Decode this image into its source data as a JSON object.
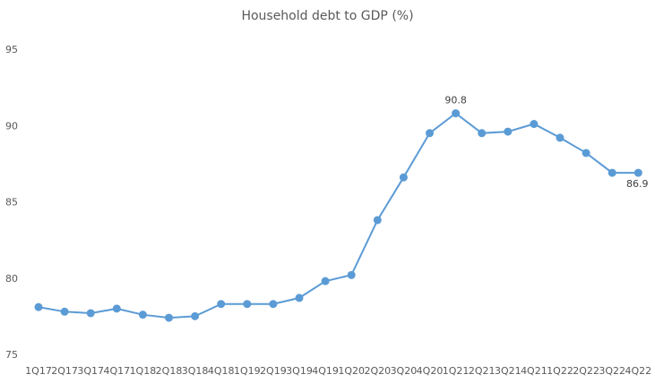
{
  "chart_data": {
    "type": "line",
    "title": "Household debt to GDP (%)",
    "xlabel": "",
    "ylabel": "",
    "categories": [
      "1Q17",
      "2Q17",
      "3Q17",
      "4Q17",
      "1Q18",
      "2Q18",
      "3Q18",
      "4Q18",
      "1Q19",
      "2Q19",
      "3Q19",
      "4Q19",
      "1Q20",
      "2Q20",
      "3Q20",
      "4Q20",
      "1Q21",
      "2Q21",
      "3Q21",
      "4Q21",
      "1Q22",
      "2Q22",
      "3Q22",
      "4Q22"
    ],
    "series": [
      {
        "values": [
          78.1,
          77.8,
          77.7,
          78.0,
          77.6,
          77.4,
          77.5,
          78.3,
          78.3,
          78.3,
          78.7,
          79.8,
          80.2,
          83.8,
          86.6,
          89.5,
          90.8,
          89.5,
          89.6,
          90.1,
          89.2,
          88.2,
          86.9,
          86.9
        ],
        "color": "#5b9bd5"
      }
    ],
    "ylim": [
      75,
      95
    ],
    "yticks": [
      75,
      80,
      85,
      90,
      95
    ],
    "grid": false,
    "legend": "none",
    "data_labels": [
      {
        "index": 16,
        "text": "90.8"
      },
      {
        "index": 23,
        "text": "86.9"
      }
    ]
  }
}
